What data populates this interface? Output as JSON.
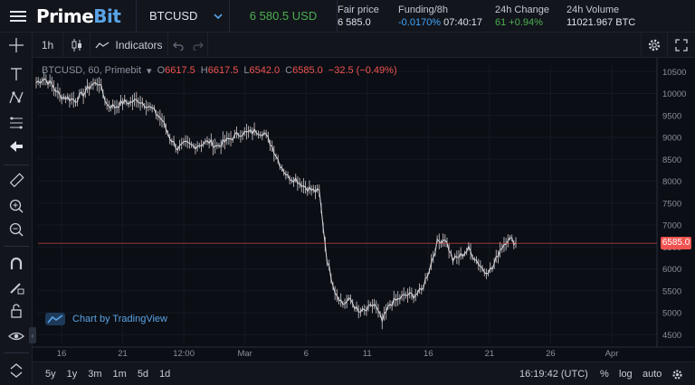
{
  "header": {
    "logo_main": "Prime",
    "logo_accent": "Bit",
    "symbol": "BTCUSD",
    "last_price": "6 580.5 USD",
    "fair_price": {
      "label": "Fair price",
      "value": "6 585.0"
    },
    "funding": {
      "label": "Funding/8h",
      "rate": "-0.0170%",
      "time": "07:40:17"
    },
    "change": {
      "label": "24h Change",
      "value": "61 +0.94%"
    },
    "volume": {
      "label": "24h Volume",
      "value": "11021.967 BTC"
    }
  },
  "toolbar": {
    "interval": "1h",
    "indicators_label": "Indicators"
  },
  "legend": {
    "symbol": "BTCUSD, 60, Primebit",
    "o_label": "O",
    "o_value": "6617.5",
    "h_label": "H",
    "h_value": "6617.5",
    "l_label": "L",
    "l_value": "6542.0",
    "c_label": "C",
    "c_value": "6585.0",
    "change": "−32.5 (−0.49%)"
  },
  "tv_badge": "Chart by TradingView",
  "price_tag": "6585.0",
  "bottom": {
    "ranges": [
      "5y",
      "1y",
      "3m",
      "1m",
      "5d",
      "1d"
    ],
    "clock": "16:19:42 (UTC)",
    "percent": "%",
    "log": "log",
    "auto": "auto"
  },
  "colors": {
    "accent": "#5aa3e6",
    "up": "#4caf50",
    "down": "#ef5350",
    "funding": "#42a5f5",
    "change": "#4caf50"
  },
  "chart_data": {
    "type": "line",
    "title": "",
    "y_ticks": [
      10500,
      10000,
      9500,
      9000,
      8500,
      8000,
      7500,
      7000,
      6500,
      6000,
      5500,
      5000,
      4500
    ],
    "ylim": [
      4300,
      10650
    ],
    "x_ticks": [
      "16",
      "21",
      "12:00",
      "Mar",
      "6",
      "11",
      "16",
      "21",
      "26",
      "Apr"
    ],
    "current_price": 6585.0,
    "series": [
      {
        "values": [
          10250,
          10350,
          10200,
          9950,
          9900,
          9850,
          10000,
          10200,
          10250,
          9750,
          9700,
          9800,
          9800,
          9850,
          9750,
          9600,
          9400,
          9000,
          8750,
          8850,
          8800,
          8850,
          8900,
          8800,
          8900,
          9000,
          9100,
          9100,
          9150,
          9100,
          8800,
          8400,
          8100,
          8050,
          7900,
          7800,
          7750,
          6200,
          5500,
          5200,
          5300,
          5000,
          5050,
          5200,
          4800,
          5200,
          5300,
          5400,
          5400,
          5500,
          6000,
          6600,
          6700,
          6200,
          6300,
          6450,
          6200,
          5950,
          6000,
          6450,
          6700,
          6600
        ]
      }
    ]
  }
}
